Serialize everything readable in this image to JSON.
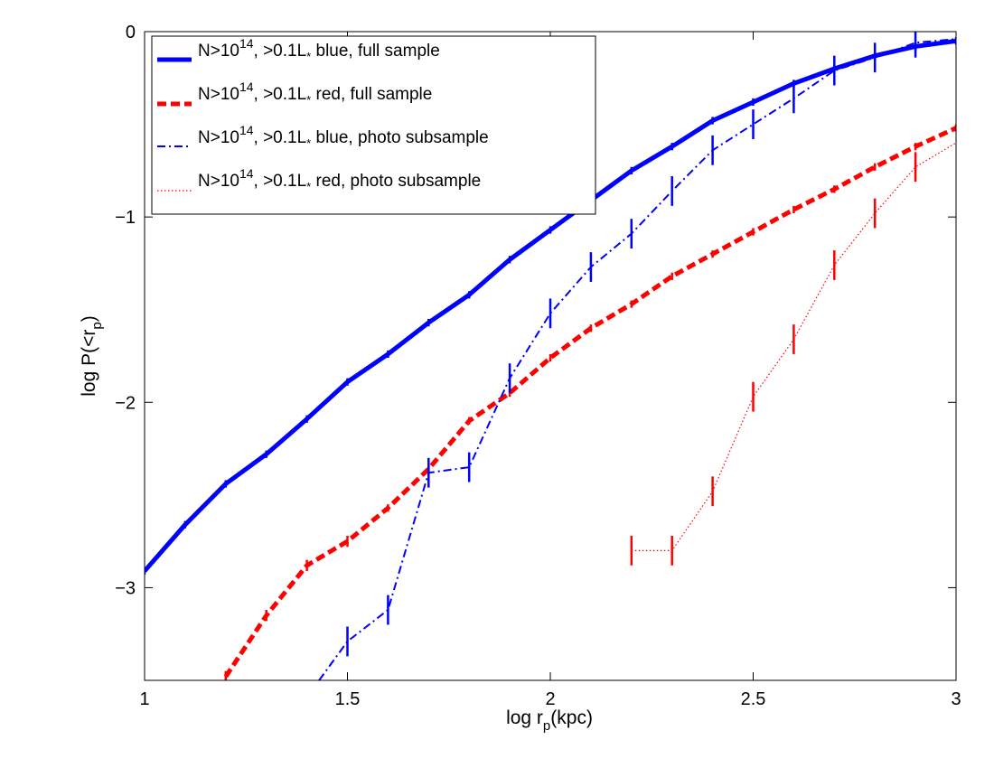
{
  "chart_data": {
    "type": "line",
    "xlabel": "log r",
    "xlabel_sub": "p",
    "xlabel_suffix": "(kpc)",
    "ylabel": "log P(<r",
    "ylabel_sub": "p",
    "ylabel_suffix": ")",
    "xlim": [
      1,
      3
    ],
    "ylim": [
      -3.5,
      0
    ],
    "xticks": [
      1,
      1.5,
      2,
      2.5,
      3
    ],
    "xtick_labels": [
      "1",
      "1.5",
      "2",
      "2.5",
      "3"
    ],
    "yticks": [
      0,
      -1,
      -2,
      -3
    ],
    "ytick_labels": [
      "0",
      "−1",
      "−2",
      "−3"
    ],
    "grid": false,
    "legend_position": "top-left",
    "series": [
      {
        "name": "N>10^14, >0.1L* blue, full sample",
        "legend_prefix": "N>10",
        "legend_sup": "14",
        "legend_mid": ", >0.1L",
        "legend_sub": "*",
        "legend_suffix": " blue, full sample",
        "color": "#0000ff",
        "style": "solid",
        "x": [
          1.0,
          1.1,
          1.2,
          1.3,
          1.4,
          1.5,
          1.6,
          1.7,
          1.8,
          1.9,
          2.0,
          2.1,
          2.2,
          2.3,
          2.4,
          2.5,
          2.6,
          2.7,
          2.8,
          2.9,
          3.0
        ],
        "y": [
          -2.91,
          -2.66,
          -2.44,
          -2.28,
          -2.09,
          -1.89,
          -1.74,
          -1.57,
          -1.42,
          -1.23,
          -1.07,
          -0.91,
          -0.75,
          -0.62,
          -0.48,
          -0.38,
          -0.28,
          -0.2,
          -0.13,
          -0.08,
          -0.05
        ],
        "err": [
          0.02,
          0.02,
          0.02,
          0.02,
          0.02,
          0.02,
          0.02,
          0.02,
          0.02,
          0.02,
          0.02,
          0.02,
          0.02,
          0.02,
          0.02,
          0.02,
          0.02,
          0.02,
          0.02,
          0.02,
          0.02
        ]
      },
      {
        "name": "N>10^14, >0.1L* red, full sample",
        "legend_prefix": "N>10",
        "legend_sup": "14",
        "legend_mid": ", >0.1L",
        "legend_sub": "*",
        "legend_suffix": " red, full sample",
        "color": "#ff0000",
        "style": "dashed",
        "x": [
          1.2,
          1.3,
          1.4,
          1.5,
          1.6,
          1.7,
          1.8,
          1.9,
          2.0,
          2.1,
          2.2,
          2.3,
          2.4,
          2.5,
          2.6,
          2.7,
          2.8,
          2.9,
          3.0
        ],
        "y": [
          -3.48,
          -3.15,
          -2.88,
          -2.75,
          -2.57,
          -2.36,
          -2.1,
          -1.95,
          -1.76,
          -1.6,
          -1.47,
          -1.32,
          -1.2,
          -1.08,
          -0.96,
          -0.85,
          -0.73,
          -0.62,
          -0.52
        ],
        "err": [
          0.03,
          0.03,
          0.03,
          0.03,
          0.02,
          0.02,
          0.02,
          0.02,
          0.02,
          0.02,
          0.02,
          0.02,
          0.02,
          0.02,
          0.02,
          0.02,
          0.02,
          0.02,
          0.02
        ]
      },
      {
        "name": "N>10^14, >0.1L* blue, photo subsample",
        "legend_prefix": "N>10",
        "legend_sup": "14",
        "legend_mid": ", >0.1L",
        "legend_sub": "*",
        "legend_suffix": " blue, photo subsample",
        "color": "#0000ff",
        "style": "dashdot",
        "x": [
          1.43,
          1.5,
          1.6,
          1.7,
          1.8,
          1.9,
          2.0,
          2.1,
          2.2,
          2.3,
          2.4,
          2.5,
          2.6,
          2.7,
          2.8,
          2.9,
          3.0
        ],
        "y": [
          -3.5,
          -3.29,
          -3.12,
          -2.38,
          -2.35,
          -1.87,
          -1.52,
          -1.27,
          -1.09,
          -0.86,
          -0.64,
          -0.5,
          -0.36,
          -0.21,
          -0.14,
          -0.06,
          -0.04
        ],
        "err": [
          null,
          0.08,
          0.08,
          0.08,
          0.08,
          0.08,
          0.08,
          0.08,
          0.08,
          0.08,
          0.08,
          0.08,
          0.08,
          0.08,
          0.08,
          0.08,
          null
        ]
      },
      {
        "name": "N>10^14, >0.1L* red, photo subsample",
        "legend_prefix": "N>10",
        "legend_sup": "14",
        "legend_mid": ", >0.1L",
        "legend_sub": "*",
        "legend_suffix": " red, photo subsample",
        "color": "#ff0000",
        "style": "dotted",
        "x": [
          2.2,
          2.3,
          2.4,
          2.5,
          2.6,
          2.7,
          2.8,
          2.9,
          3.0
        ],
        "y": [
          -2.8,
          -2.8,
          -2.48,
          -1.97,
          -1.66,
          -1.26,
          -0.98,
          -0.73,
          -0.6
        ],
        "err": [
          0.08,
          0.08,
          0.08,
          0.08,
          0.08,
          0.08,
          0.08,
          0.08,
          null
        ]
      }
    ]
  }
}
